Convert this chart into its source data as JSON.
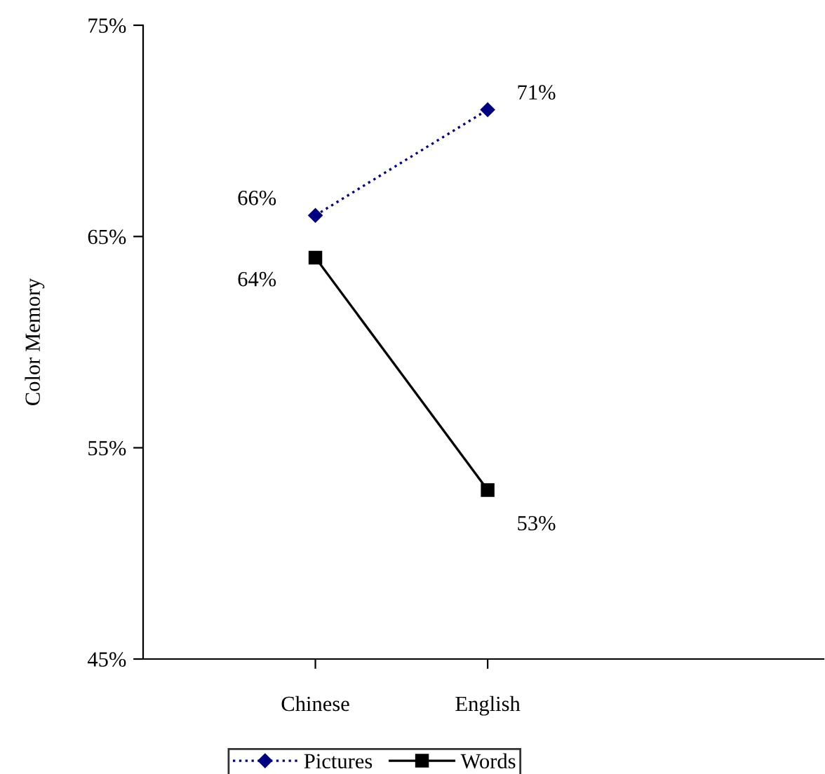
{
  "chart_data": {
    "type": "line",
    "ylabel": "Color Memory",
    "categories": [
      "Chinese",
      "English"
    ],
    "series": [
      {
        "name": "Pictures",
        "color": "#000080",
        "values": [
          66,
          71
        ],
        "marker": "diamond",
        "line_style": "dotted",
        "value_labels": [
          "66%",
          "71%"
        ]
      },
      {
        "name": "Words",
        "color": "#000000",
        "values": [
          64,
          53
        ],
        "marker": "square",
        "line_style": "solid",
        "value_labels": [
          "64%",
          "53%"
        ]
      }
    ],
    "ylim": [
      45,
      75
    ],
    "yticks": [
      {
        "value": 45,
        "label": "45%"
      },
      {
        "value": 55,
        "label": "55%"
      },
      {
        "value": 65,
        "label": "65%"
      },
      {
        "value": 75,
        "label": "75%"
      }
    ],
    "grid": false,
    "legend": "bottom"
  }
}
